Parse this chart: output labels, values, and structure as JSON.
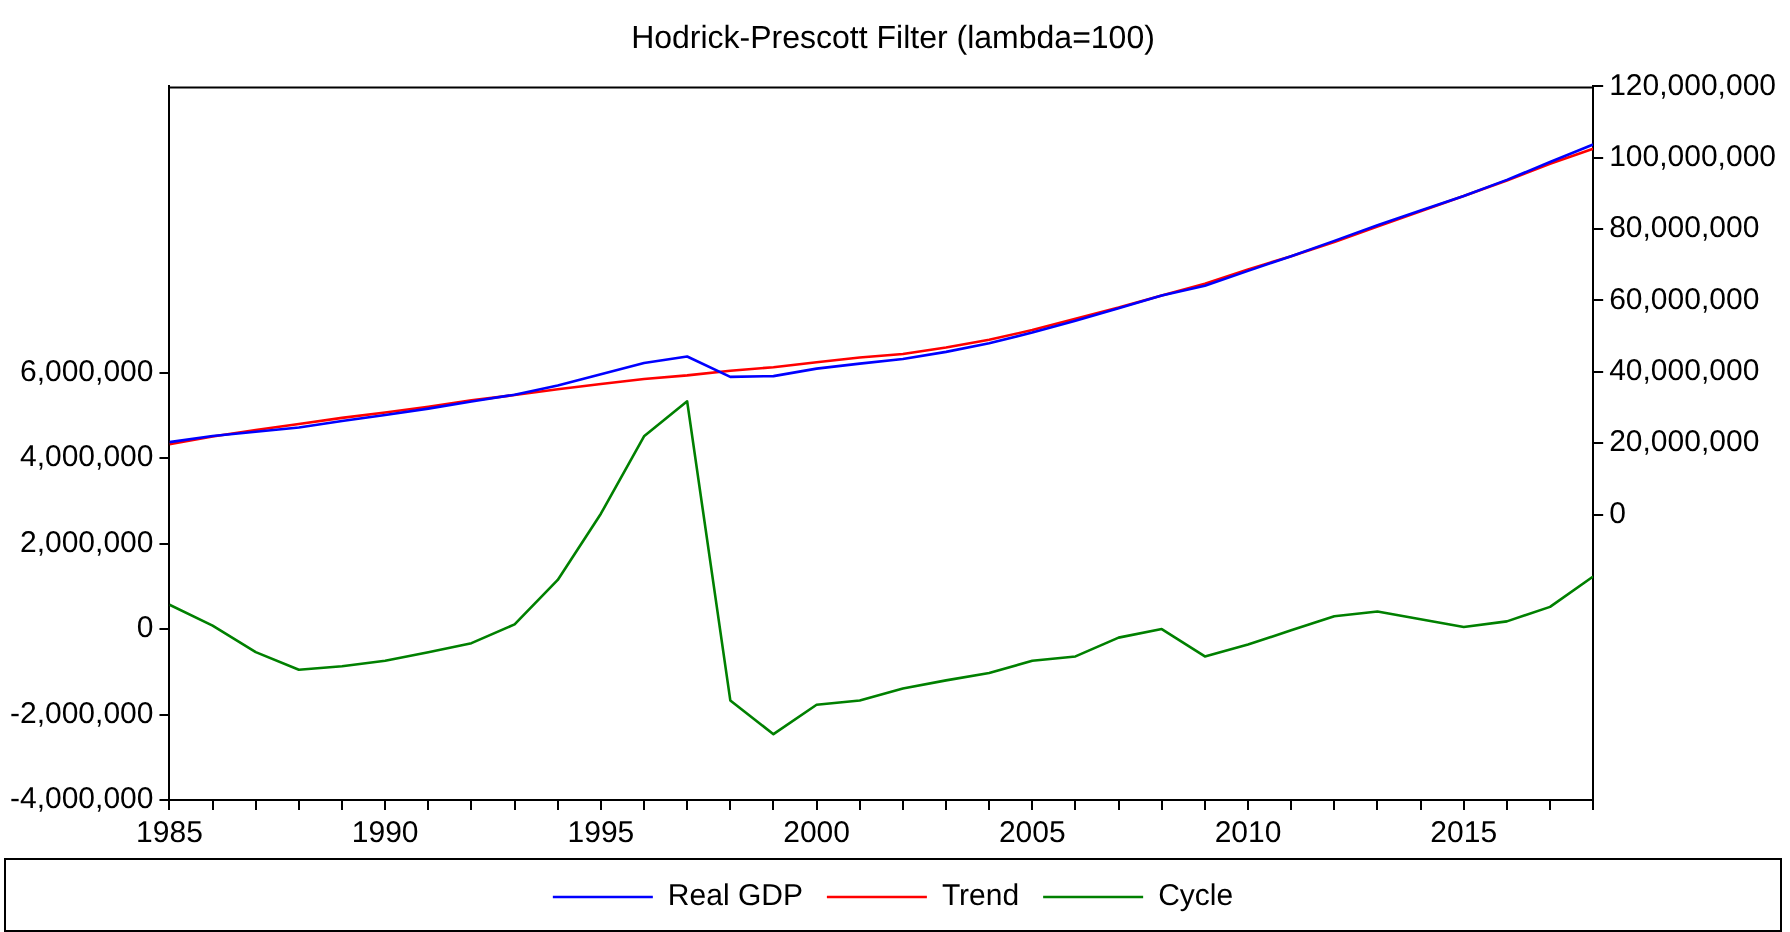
{
  "chart_data": {
    "type": "line",
    "title": "Hodrick-Prescott Filter (lambda=100)",
    "x": [
      1985,
      1986,
      1987,
      1988,
      1989,
      1990,
      1991,
      1992,
      1993,
      1994,
      1995,
      1996,
      1997,
      1998,
      1999,
      2000,
      2001,
      2002,
      2003,
      2004,
      2005,
      2006,
      2007,
      2008,
      2009,
      2010,
      2011,
      2012,
      2013,
      2014,
      2015,
      2016,
      2017,
      2018
    ],
    "series": [
      {
        "name": "Real GDP",
        "color": "#0000ff",
        "axis": "y2",
        "values": [
          20300000,
          22000000,
          23200000,
          24400000,
          26200000,
          27900000,
          29700000,
          31700000,
          33600000,
          36200000,
          39300000,
          42500000,
          44300000,
          38600000,
          38800000,
          40900000,
          42300000,
          43600000,
          45600000,
          48000000,
          51000000,
          54300000,
          57800000,
          61400000,
          64100000,
          68300000,
          72400000,
          76700000,
          81100000,
          85200000,
          89300000,
          93800000,
          98800000,
          103700000
        ]
      },
      {
        "name": "Trend",
        "color": "#ff0000",
        "axis": "y2",
        "values": [
          19700000,
          21900000,
          23700000,
          25400000,
          27100000,
          28600000,
          30200000,
          32000000,
          33500000,
          35100000,
          36600000,
          38000000,
          39000000,
          40300000,
          41300000,
          42700000,
          44000000,
          45000000,
          46800000,
          49000000,
          51700000,
          54900000,
          58000000,
          61400000,
          64700000,
          68700000,
          72400000,
          76400000,
          80700000,
          85000000,
          89300000,
          93600000,
          98300000,
          102500000
        ]
      },
      {
        "name": "Cycle",
        "color": "#008000",
        "axis": "y",
        "values": [
          570000,
          80000,
          -540000,
          -950000,
          -870000,
          -740000,
          -540000,
          -330000,
          110000,
          1150000,
          2700000,
          4510000,
          5330000,
          -1670000,
          -2460000,
          -1770000,
          -1670000,
          -1390000,
          -1200000,
          -1030000,
          -740000,
          -640000,
          -200000,
          0,
          -640000,
          -360000,
          -30000,
          300000,
          410000,
          230000,
          50000,
          180000,
          520000,
          1230000
        ]
      }
    ],
    "xlim": [
      1985,
      2018
    ],
    "xticks": [
      1985,
      {
        "value": 1986,
        "label": null
      },
      {
        "value": 1987,
        "label": null
      },
      {
        "value": 1988,
        "label": null
      },
      {
        "value": 1989,
        "label": null
      },
      1990,
      {
        "value": 1991,
        "label": null
      },
      {
        "value": 1992,
        "label": null
      },
      {
        "value": 1993,
        "label": null
      },
      {
        "value": 1994,
        "label": null
      },
      1995,
      {
        "value": 1996,
        "label": null
      },
      {
        "value": 1997,
        "label": null
      },
      {
        "value": 1998,
        "label": null
      },
      {
        "value": 1999,
        "label": null
      },
      2000,
      {
        "value": 2001,
        "label": null
      },
      {
        "value": 2002,
        "label": null
      },
      {
        "value": 2003,
        "label": null
      },
      {
        "value": 2004,
        "label": null
      },
      2005,
      {
        "value": 2006,
        "label": null
      },
      {
        "value": 2007,
        "label": null
      },
      {
        "value": 2008,
        "label": null
      },
      {
        "value": 2009,
        "label": null
      },
      2010,
      {
        "value": 2011,
        "label": null
      },
      {
        "value": 2012,
        "label": null
      },
      {
        "value": 2013,
        "label": null
      },
      {
        "value": 2014,
        "label": null
      },
      2015,
      {
        "value": 2016,
        "label": null
      },
      {
        "value": 2017,
        "label": null
      },
      {
        "value": 2018,
        "label": null
      }
    ],
    "ylim": [
      -4000000,
      12700000
    ],
    "yticks": [
      {
        "value": -4000000,
        "label": "-4,000,000"
      },
      {
        "value": -2000000,
        "label": "-2,000,000"
      },
      0,
      {
        "value": 2000000,
        "label": "2,000,000"
      },
      {
        "value": 4000000,
        "label": "4,000,000"
      },
      {
        "value": 6000000,
        "label": "6,000,000"
      }
    ],
    "y2lim": [
      -80000000,
      120000000
    ],
    "y2ticks": [
      0,
      {
        "value": 20000000,
        "label": "20,000,000"
      },
      {
        "value": 40000000,
        "label": "40,000,000"
      },
      {
        "value": 60000000,
        "label": "60,000,000"
      },
      {
        "value": 80000000,
        "label": "80,000,000"
      },
      {
        "value": 100000000,
        "label": "100,000,000"
      },
      {
        "value": 120000000,
        "label": "120,000,000"
      }
    ],
    "grid": false,
    "legend": "bottom",
    "marker": "none",
    "line_style": "solid"
  }
}
